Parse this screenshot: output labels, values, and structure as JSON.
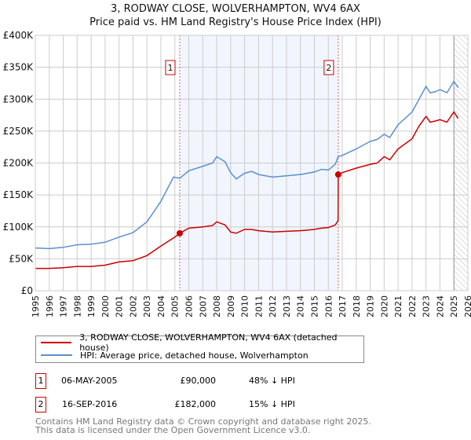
{
  "title": "3, RODWAY CLOSE, WOLVERHAMPTON, WV4 6AX",
  "subtitle": "Price paid vs. HM Land Registry's House Price Index (HPI)",
  "chart_data": {
    "type": "line",
    "xlim": [
      1995,
      2026
    ],
    "ylim": [
      0,
      400
    ],
    "y_unit": "£K",
    "yticks": [
      "£0",
      "£50K",
      "£100K",
      "£150K",
      "£200K",
      "£250K",
      "£300K",
      "£350K",
      "£400K"
    ],
    "xticks": [
      "1995",
      "1996",
      "1997",
      "1998",
      "1999",
      "2000",
      "2001",
      "2002",
      "2003",
      "2004",
      "2005",
      "2006",
      "2007",
      "2008",
      "2009",
      "2010",
      "2011",
      "2012",
      "2013",
      "2014",
      "2015",
      "2016",
      "2017",
      "2018",
      "2019",
      "2020",
      "2021",
      "2022",
      "2023",
      "2024",
      "2025",
      "2026"
    ],
    "grid": true,
    "shaded_range": [
      2005.35,
      2016.71
    ],
    "forecast_start": 2025.0,
    "series": [
      {
        "name": "3, RODWAY CLOSE, WOLVERHAMPTON, WV4 6AX (detached house)",
        "color": "#cc0000",
        "x": [
          1995,
          1996,
          1997,
          1998,
          1999,
          2000,
          2001,
          2002,
          2003,
          2004,
          2005,
          2005.35,
          2006,
          2007,
          2007.7,
          2008,
          2008.6,
          2009,
          2009.4,
          2010,
          2010.5,
          2011,
          2012,
          2013,
          2014,
          2015,
          2015.5,
          2016,
          2016.5,
          2016.7,
          2016.71,
          2017,
          2018,
          2019,
          2019.5,
          2020,
          2020.4,
          2021,
          2022,
          2022.5,
          2023,
          2023.3,
          2023.7,
          2024,
          2024.5,
          2025,
          2025.3
        ],
        "y": [
          35,
          35,
          36,
          38,
          38,
          40,
          45,
          47,
          55,
          70,
          84,
          90,
          98,
          100,
          102,
          108,
          103,
          92,
          90,
          96,
          96,
          94,
          92,
          93,
          94,
          96,
          98,
          99,
          103,
          110,
          182,
          185,
          192,
          198,
          200,
          210,
          205,
          222,
          238,
          258,
          273,
          264,
          266,
          268,
          264,
          280,
          270
        ]
      },
      {
        "name": "HPI: Average price, detached house, Wolverhampton",
        "color": "#5b8fd0",
        "x": [
          1995,
          1996,
          1997,
          1998,
          1999,
          2000,
          2001,
          2002,
          2003,
          2004,
          2004.9,
          2005.35,
          2006,
          2007,
          2007.7,
          2008,
          2008.6,
          2009,
          2009.4,
          2010,
          2010.5,
          2011,
          2012,
          2013,
          2014,
          2015,
          2015.5,
          2016,
          2016.5,
          2016.7,
          2017,
          2018,
          2019,
          2019.5,
          2020,
          2020.4,
          2021,
          2022,
          2022.5,
          2023,
          2023.3,
          2023.7,
          2024,
          2024.5,
          2025,
          2025.3
        ],
        "y": [
          67,
          66,
          68,
          72,
          73,
          76,
          84,
          91,
          108,
          140,
          178,
          176,
          188,
          195,
          200,
          210,
          202,
          185,
          175,
          184,
          187,
          182,
          178,
          180,
          182,
          186,
          190,
          189,
          198,
          210,
          212,
          222,
          234,
          237,
          245,
          240,
          260,
          280,
          300,
          320,
          310,
          312,
          315,
          310,
          328,
          318
        ]
      }
    ],
    "sales": [
      {
        "label": "1",
        "x": 2005.35,
        "y": 90
      },
      {
        "label": "2",
        "x": 2016.71,
        "y": 182
      }
    ]
  },
  "legend": [
    {
      "label": "3, RODWAY CLOSE, WOLVERHAMPTON, WV4 6AX (detached house)",
      "color": "#cc0000"
    },
    {
      "label": "HPI: Average price, detached house, Wolverhampton",
      "color": "#5b8fd0"
    }
  ],
  "transactions": [
    {
      "num": "1",
      "date": "06-MAY-2005",
      "price": "£90,000",
      "hpi": "48% ↓ HPI"
    },
    {
      "num": "2",
      "date": "16-SEP-2016",
      "price": "£182,000",
      "hpi": "15% ↓ HPI"
    }
  ],
  "footer": {
    "line1": "Contains HM Land Registry data © Crown copyright and database right 2025.",
    "line2": "This data is licensed under the Open Government Licence v3.0."
  }
}
